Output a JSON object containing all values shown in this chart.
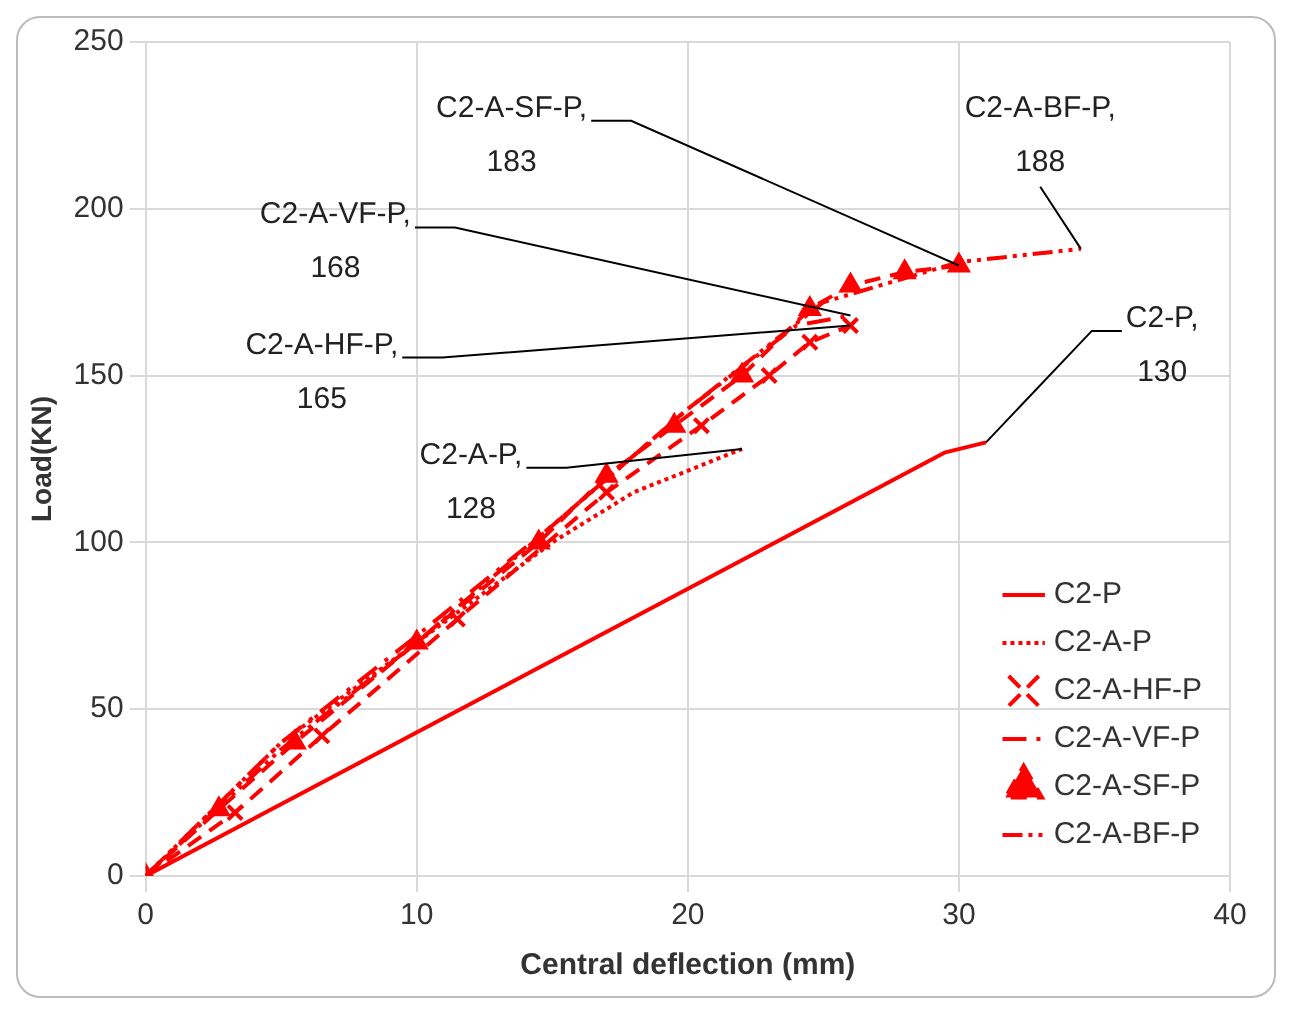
{
  "chart_data": {
    "type": "line",
    "xlabel": "Central deflection (mm)",
    "ylabel": "Load(KN)",
    "xlim": [
      0,
      40
    ],
    "xticks": [
      0,
      10,
      20,
      30,
      40
    ],
    "ylim": [
      0,
      250
    ],
    "yticks": [
      0,
      50,
      100,
      150,
      200,
      250
    ],
    "grid": true,
    "legend": "bottom right",
    "series": [
      {
        "name": "C2-P",
        "color": "#ff0000",
        "line_style": "solid",
        "marker": "none",
        "x": [
          0,
          29.5,
          31
        ],
        "values": [
          0,
          127,
          130
        ]
      },
      {
        "name": "C2-A-P",
        "color": "#ff0000",
        "line_style": "dotted",
        "marker": "none",
        "x": [
          0,
          5,
          10,
          15,
          18,
          22
        ],
        "values": [
          0,
          40,
          70,
          100,
          115,
          128
        ]
      },
      {
        "name": "C2-A-HF-P",
        "color": "#ff0000",
        "line_style": "dashed",
        "marker": "cross",
        "x": [
          0,
          3.3,
          6.5,
          11.5,
          17,
          20.5,
          23,
          24.5,
          26
        ],
        "values": [
          0,
          19,
          42,
          77,
          115,
          135,
          150,
          160,
          165
        ]
      },
      {
        "name": "C2-A-VF-P",
        "color": "#ff0000",
        "line_style": "dashdot",
        "marker": "none",
        "x": [
          0,
          5,
          10,
          15,
          20,
          24,
          26
        ],
        "values": [
          0,
          40,
          72,
          105,
          140,
          165,
          168
        ]
      },
      {
        "name": "C2-A-SF-P",
        "color": "#ff0000",
        "line_style": "dashed",
        "marker": "triangle",
        "x": [
          0,
          2.7,
          5.5,
          10,
          14.5,
          17,
          19.5,
          22,
          24.5,
          26,
          28,
          30
        ],
        "values": [
          0,
          20,
          40,
          70,
          100,
          120,
          135,
          150,
          170,
          177,
          181,
          183
        ]
      },
      {
        "name": "C2-A-BF-P",
        "color": "#ff0000",
        "line_style": "dashdotdot",
        "marker": "none",
        "x": [
          0,
          5,
          10,
          15,
          20,
          25,
          30,
          34.5
        ],
        "values": [
          0,
          38,
          70,
          105,
          140,
          172,
          184,
          188
        ]
      }
    ],
    "annotations": [
      {
        "text": "C2-A-SF-P, 183",
        "x": 30,
        "y": 183
      },
      {
        "text": "C2-A-BF-P, 188",
        "x": 34.5,
        "y": 188
      },
      {
        "text": "C2-A-VF-P, 168",
        "x": 26,
        "y": 168
      },
      {
        "text": "C2-A-HF-P, 165",
        "x": 26,
        "y": 165
      },
      {
        "text": "C2-A-P, 128",
        "x": 22,
        "y": 128
      },
      {
        "text": "C2-P, 130",
        "x": 31,
        "y": 130
      }
    ]
  }
}
